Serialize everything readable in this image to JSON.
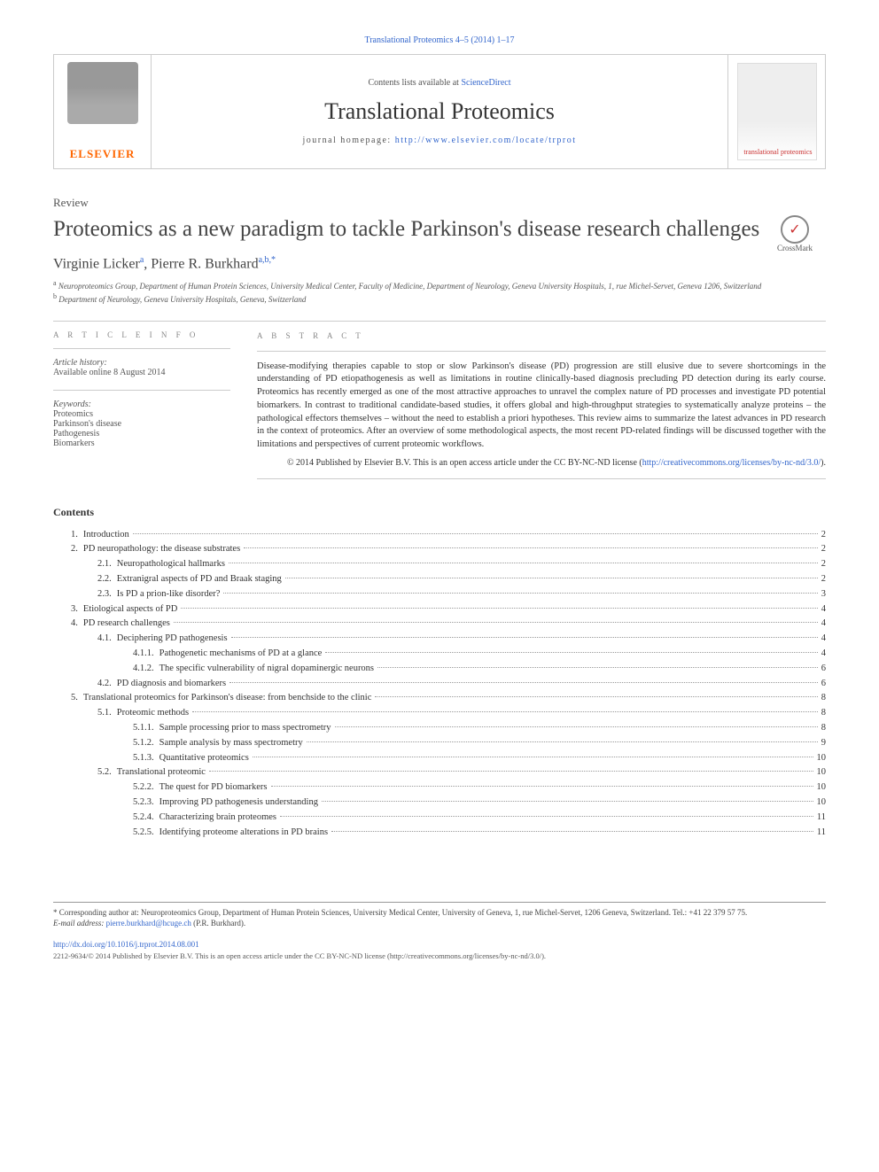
{
  "top_link": "Translational Proteomics 4–5 (2014) 1–17",
  "header": {
    "contents_prefix": "Contents lists available at ",
    "contents_link": "ScienceDirect",
    "journal_name": "Translational Proteomics",
    "homepage_prefix": "journal homepage: ",
    "homepage_url": "http://www.elsevier.com/locate/trprot",
    "publisher": "ELSEVIER",
    "cover_label": "translational proteomics"
  },
  "article": {
    "type": "Review",
    "title": "Proteomics as a new paradigm to tackle Parkinson's disease research challenges",
    "crossmark": "CrossMark",
    "authors_html": "Virginie Licker",
    "author1": "Virginie Licker",
    "author1_sup": "a",
    "author2": "Pierre R. Burkhard",
    "author2_sup": "a,b,*",
    "affiliations": {
      "a": "Neuroproteomics Group, Department of Human Protein Sciences, University Medical Center, Faculty of Medicine, Department of Neurology, Geneva University Hospitals, 1, rue Michel-Servet, Geneva 1206, Switzerland",
      "b": "Department of Neurology, Geneva University Hospitals, Geneva, Switzerland"
    }
  },
  "info": {
    "section_label": "A R T I C L E   I N F O",
    "history_label": "Article history:",
    "history_value": "Available online 8 August 2014",
    "keywords_label": "Keywords:",
    "keywords": [
      "Proteomics",
      "Parkinson's disease",
      "Pathogenesis",
      "Biomarkers"
    ]
  },
  "abstract": {
    "section_label": "A B S T R A C T",
    "text": "Disease-modifying therapies capable to stop or slow Parkinson's disease (PD) progression are still elusive due to severe shortcomings in the understanding of PD etiopathogenesis as well as limitations in routine clinically-based diagnosis precluding PD detection during its early course. Proteomics has recently emerged as one of the most attractive approaches to unravel the complex nature of PD processes and investigate PD potential biomarkers. In contrast to traditional candidate-based studies, it offers global and high-throughput strategies to systematically analyze proteins – the pathological effectors themselves – without the need to establish a priori hypotheses. This review aims to summarize the latest advances in PD research in the context of proteomics. After an overview of some methodological aspects, the most recent PD-related findings will be discussed together with the limitations and perspectives of current proteomic workflows.",
    "copyright": "© 2014 Published by Elsevier B.V. This is an open access article under the CC BY-NC-ND license (",
    "cc_url": "http://creativecommons.org/licenses/by-nc-nd/3.0/",
    "cc_close": ")."
  },
  "contents": {
    "heading": "Contents",
    "items": [
      {
        "lvl": 1,
        "num": "1.",
        "title": "Introduction",
        "page": "2"
      },
      {
        "lvl": 1,
        "num": "2.",
        "title": "PD neuropathology: the disease substrates",
        "page": "2"
      },
      {
        "lvl": 2,
        "num": "2.1.",
        "title": "Neuropathological hallmarks",
        "page": "2"
      },
      {
        "lvl": 2,
        "num": "2.2.",
        "title": "Extranigral aspects of PD and Braak staging",
        "page": "2"
      },
      {
        "lvl": 2,
        "num": "2.3.",
        "title": "Is PD a prion-like disorder?",
        "page": "3"
      },
      {
        "lvl": 1,
        "num": "3.",
        "title": "Etiological aspects of PD",
        "page": "4"
      },
      {
        "lvl": 1,
        "num": "4.",
        "title": "PD research challenges",
        "page": "4"
      },
      {
        "lvl": 2,
        "num": "4.1.",
        "title": "Deciphering PD pathogenesis",
        "page": "4"
      },
      {
        "lvl": 3,
        "num": "4.1.1.",
        "title": "Pathogenetic mechanisms of PD at a glance",
        "page": "4"
      },
      {
        "lvl": 3,
        "num": "4.1.2.",
        "title": "The specific vulnerability of nigral dopaminergic neurons",
        "page": "6"
      },
      {
        "lvl": 2,
        "num": "4.2.",
        "title": "PD diagnosis and biomarkers",
        "page": "6"
      },
      {
        "lvl": 1,
        "num": "5.",
        "title": "Translational proteomics for Parkinson's disease: from benchside to the clinic",
        "page": "8"
      },
      {
        "lvl": 2,
        "num": "5.1.",
        "title": "Proteomic methods",
        "page": "8"
      },
      {
        "lvl": 3,
        "num": "5.1.1.",
        "title": "Sample processing prior to mass spectrometry",
        "page": "8"
      },
      {
        "lvl": 3,
        "num": "5.1.2.",
        "title": "Sample analysis by mass spectrometry",
        "page": "9"
      },
      {
        "lvl": 3,
        "num": "5.1.3.",
        "title": "Quantitative proteomics",
        "page": "10"
      },
      {
        "lvl": 2,
        "num": "5.2.",
        "title": "Translational proteomic",
        "page": "10"
      },
      {
        "lvl": 3,
        "num": "5.2.2.",
        "title": "The quest for PD biomarkers",
        "page": "10"
      },
      {
        "lvl": 3,
        "num": "5.2.3.",
        "title": "Improving PD pathogenesis understanding",
        "page": "10"
      },
      {
        "lvl": 3,
        "num": "5.2.4.",
        "title": "Characterizing brain proteomes",
        "page": "11"
      },
      {
        "lvl": 3,
        "num": "5.2.5.",
        "title": "Identifying proteome alterations in PD brains",
        "page": "11"
      }
    ]
  },
  "footer": {
    "corr_label": "* Corresponding author at: Neuroproteomics Group, Department of Human Protein Sciences, University Medical Center, University of Geneva, 1, rue Michel-Servet, 1206 Geneva, Switzerland. Tel.: +41 22 379 57 75.",
    "email_label": "E-mail address: ",
    "email": "pierre.burkhard@hcuge.ch",
    "email_name": " (P.R. Burkhard).",
    "doi": "http://dx.doi.org/10.1016/j.trprot.2014.08.001",
    "issn_line": "2212-9634/© 2014 Published by Elsevier B.V. This is an open access article under the CC BY-NC-ND license (http://creativecommons.org/licenses/by-nc-nd/3.0/)."
  },
  "colors": {
    "link": "#3366cc",
    "text": "#333333",
    "border": "#cccccc",
    "orange": "#ff6600"
  }
}
